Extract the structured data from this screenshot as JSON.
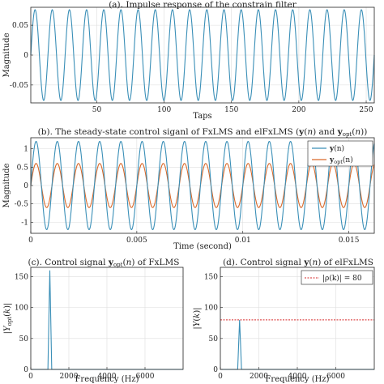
{
  "colors": {
    "series_blue": "#3a8fb7",
    "series_orange": "#d9692a",
    "threshold_red": "#d62728",
    "grid": "#dddddd",
    "axis": "#222222"
  },
  "chart_data": [
    {
      "id": "a",
      "type": "line",
      "title": "(a). Impulse response of the constrain filter",
      "xlabel": "Taps",
      "ylabel": "Magnitude",
      "xlim": [
        1,
        256
      ],
      "ylim": [
        -0.08,
        0.08
      ],
      "xticks": [
        50,
        100,
        150,
        200,
        250
      ],
      "yticks": [
        -0.05,
        0,
        0.05
      ],
      "xtick_labels": [
        "50",
        "100",
        "150",
        "200",
        "250"
      ],
      "ytick_labels": [
        "-0.05",
        "0",
        "0.05"
      ],
      "grid": true,
      "series": [
        {
          "amplitude": 0.076,
          "cycles_in_range": 20,
          "phase": 0.0,
          "color": "#3a8fb7"
        }
      ]
    },
    {
      "id": "b",
      "type": "line",
      "title": "(b). The steady-state control siganl of FxLMS and elFxLMS (y(n) and y_opt(n))",
      "xlabel": "Time (second)",
      "ylabel": "Magnitude",
      "xlim": [
        0,
        0.0162
      ],
      "ylim": [
        -1.3,
        1.3
      ],
      "xticks": [
        0,
        0.005,
        0.01,
        0.015
      ],
      "yticks": [
        -1,
        -0.5,
        0,
        0.5,
        1
      ],
      "xtick_labels": [
        "0",
        "0.005",
        "0.01",
        "0.015"
      ],
      "ytick_labels": [
        "-1",
        "-0.5",
        "0",
        "0.5",
        "1"
      ],
      "grid": true,
      "legend": {
        "placement": "top-right",
        "entries": [
          {
            "bold": "y",
            "rest": "(n)",
            "sub": "",
            "color": "#3a8fb7"
          },
          {
            "bold": "y",
            "rest": "(n)",
            "sub": "opt",
            "color": "#d9692a"
          }
        ]
      },
      "series": [
        {
          "name": "y(n)",
          "amplitude": 1.2,
          "frequency": 1000,
          "phase": 0.0,
          "color": "#3a8fb7"
        },
        {
          "name": "y_opt(n)",
          "amplitude": 0.6,
          "frequency": 1000,
          "phase": 0.0,
          "color": "#d9692a"
        }
      ]
    },
    {
      "id": "c",
      "type": "line",
      "title": "(c). Control signal y_opt(n) of FxLMS",
      "xlabel": "Frequency (Hz)",
      "ylabel": "|Y_opt(k)|",
      "xlim": [
        0,
        8000
      ],
      "ylim": [
        0,
        165
      ],
      "xticks": [
        0,
        2000,
        4000,
        6000
      ],
      "yticks": [
        0,
        50,
        100,
        150
      ],
      "xtick_labels": [
        "0",
        "2000",
        "4000",
        "6000"
      ],
      "ytick_labels": [
        "0",
        "50",
        "100",
        "150"
      ],
      "grid": true,
      "series": [
        {
          "x": [
            0,
            900,
            1000,
            1100,
            8000
          ],
          "y": [
            0,
            0,
            160,
            0,
            0
          ],
          "color": "#3a8fb7"
        }
      ]
    },
    {
      "id": "d",
      "type": "line",
      "title": "(d). Control signal y(n) of elFxLMS",
      "xlabel": "Frequency (Hz)",
      "ylabel": "|Y(k)|",
      "xlim": [
        0,
        8000
      ],
      "ylim": [
        0,
        165
      ],
      "xticks": [
        0,
        2000,
        4000,
        6000
      ],
      "yticks": [
        0,
        50,
        100,
        150
      ],
      "xtick_labels": [
        "0",
        "2000",
        "4000",
        "6000"
      ],
      "ytick_labels": [
        "0",
        "50",
        "100",
        "150"
      ],
      "grid": true,
      "legend": {
        "placement": "top-right",
        "text": "|ρ(k)| = 80",
        "color": "#d62728"
      },
      "threshold": 80,
      "series": [
        {
          "x": [
            0,
            900,
            1000,
            1100,
            8000
          ],
          "y": [
            0,
            0,
            80,
            0,
            0
          ],
          "color": "#3a8fb7"
        }
      ]
    }
  ]
}
